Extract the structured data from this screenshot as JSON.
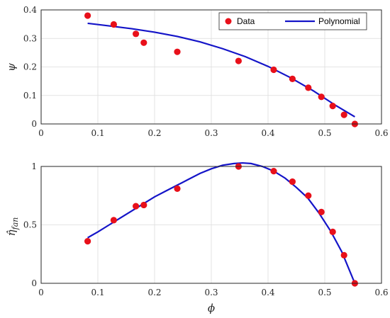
{
  "colors": {
    "data": "#e8101a",
    "fit": "#1414c8"
  },
  "chart_data": [
    {
      "type": "scatter",
      "ylabel": "ψ",
      "xlim": [
        0,
        0.6
      ],
      "ylim": [
        0,
        0.4
      ],
      "xticks": [
        0,
        0.1,
        0.2,
        0.3,
        0.4,
        0.5,
        0.6
      ],
      "xtick_labels": [
        "0",
        "0.1",
        "0.2",
        "0.3",
        "0.4",
        "0.5",
        "0.6"
      ],
      "yticks": [
        0,
        0.1,
        0.2,
        0.3,
        0.4
      ],
      "ytick_labels": [
        "0",
        "0.1",
        "0.2",
        "0.3",
        "0.4"
      ],
      "grid": true,
      "legend": "top-right",
      "series": [
        {
          "name": "Data",
          "kind": "scatter",
          "x": [
            0.082,
            0.128,
            0.167,
            0.181,
            0.24,
            0.348,
            0.41,
            0.443,
            0.471,
            0.494,
            0.514,
            0.534,
            0.553
          ],
          "y": [
            0.38,
            0.349,
            0.316,
            0.285,
            0.253,
            0.221,
            0.19,
            0.158,
            0.127,
            0.095,
            0.063,
            0.032,
            0.0
          ]
        },
        {
          "name": "Polynomial",
          "kind": "line",
          "x": [
            0.082,
            0.12,
            0.16,
            0.2,
            0.24,
            0.28,
            0.32,
            0.36,
            0.4,
            0.44,
            0.48,
            0.52,
            0.553
          ],
          "y": [
            0.353,
            0.344,
            0.334,
            0.322,
            0.307,
            0.288,
            0.264,
            0.236,
            0.202,
            0.162,
            0.116,
            0.064,
            0.025
          ]
        }
      ]
    },
    {
      "type": "scatter",
      "xlabel": "ϕ",
      "ylabel": "η̂",
      "ylabel_sub": "fan",
      "xlim": [
        0,
        0.6
      ],
      "ylim": [
        0,
        1
      ],
      "xticks": [
        0,
        0.1,
        0.2,
        0.3,
        0.4,
        0.5,
        0.6
      ],
      "xtick_labels": [
        "0",
        "0.1",
        "0.2",
        "0.3",
        "0.4",
        "0.5",
        "0.6"
      ],
      "yticks": [
        0,
        0.5,
        1
      ],
      "ytick_labels": [
        "0",
        "0.5",
        "1"
      ],
      "grid": true,
      "series": [
        {
          "name": "",
          "kind": "scatter",
          "x": [
            0.082,
            0.128,
            0.167,
            0.181,
            0.24,
            0.348,
            0.41,
            0.443,
            0.471,
            0.494,
            0.514,
            0.534,
            0.553
          ],
          "y": [
            0.36,
            0.54,
            0.66,
            0.67,
            0.81,
            1.0,
            0.96,
            0.87,
            0.75,
            0.61,
            0.44,
            0.24,
            0.0
          ]
        },
        {
          "name": "",
          "kind": "line",
          "x": [
            0.082,
            0.1,
            0.12,
            0.14,
            0.16,
            0.18,
            0.2,
            0.22,
            0.24,
            0.26,
            0.28,
            0.3,
            0.32,
            0.34,
            0.355,
            0.37,
            0.39,
            0.41,
            0.43,
            0.45,
            0.47,
            0.49,
            0.51,
            0.53,
            0.553
          ],
          "y": [
            0.39,
            0.44,
            0.5,
            0.56,
            0.62,
            0.68,
            0.74,
            0.79,
            0.84,
            0.89,
            0.94,
            0.98,
            1.01,
            1.025,
            1.03,
            1.025,
            1.0,
            0.96,
            0.9,
            0.82,
            0.73,
            0.6,
            0.45,
            0.27,
            0.0
          ]
        }
      ]
    }
  ]
}
